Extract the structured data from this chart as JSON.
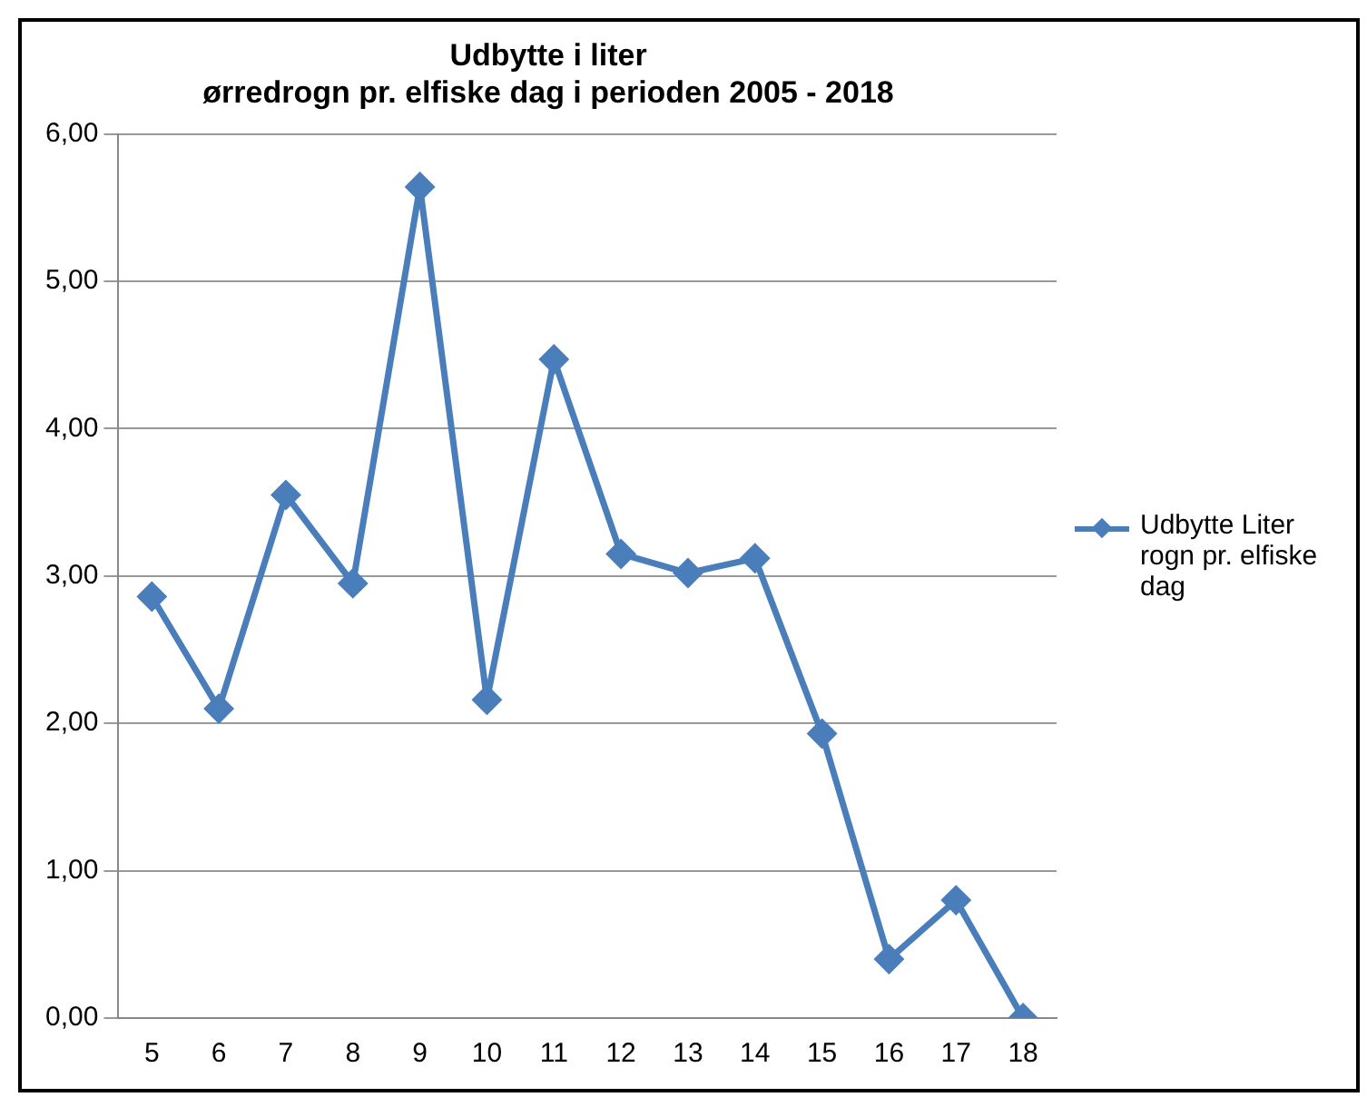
{
  "chart_data": {
    "type": "line",
    "title": "Udbytte i liter",
    "subtitle": "ørredrogn pr. elfiske dag i perioden 2005 - 2018",
    "categories": [
      "5",
      "6",
      "7",
      "8",
      "9",
      "10",
      "11",
      "12",
      "13",
      "14",
      "15",
      "16",
      "17",
      "18"
    ],
    "series": [
      {
        "name": "Udbytte Liter rogn pr. elfiske dag",
        "color": "#4a7ebb",
        "values": [
          2.86,
          2.1,
          3.55,
          2.95,
          5.64,
          2.16,
          4.47,
          3.15,
          3.02,
          3.12,
          1.93,
          0.4,
          0.8,
          0.0
        ]
      }
    ],
    "ylim": [
      0,
      6
    ],
    "yticks": [
      {
        "value": 0,
        "label": "0,00"
      },
      {
        "value": 1,
        "label": "1,00"
      },
      {
        "value": 2,
        "label": "2,00"
      },
      {
        "value": 3,
        "label": "3,00"
      },
      {
        "value": 4,
        "label": "4,00"
      },
      {
        "value": 5,
        "label": "5,00"
      },
      {
        "value": 6,
        "label": "6,00"
      }
    ],
    "grid": "y",
    "legend": "right",
    "marker": "diamond",
    "line_style": "solid"
  }
}
